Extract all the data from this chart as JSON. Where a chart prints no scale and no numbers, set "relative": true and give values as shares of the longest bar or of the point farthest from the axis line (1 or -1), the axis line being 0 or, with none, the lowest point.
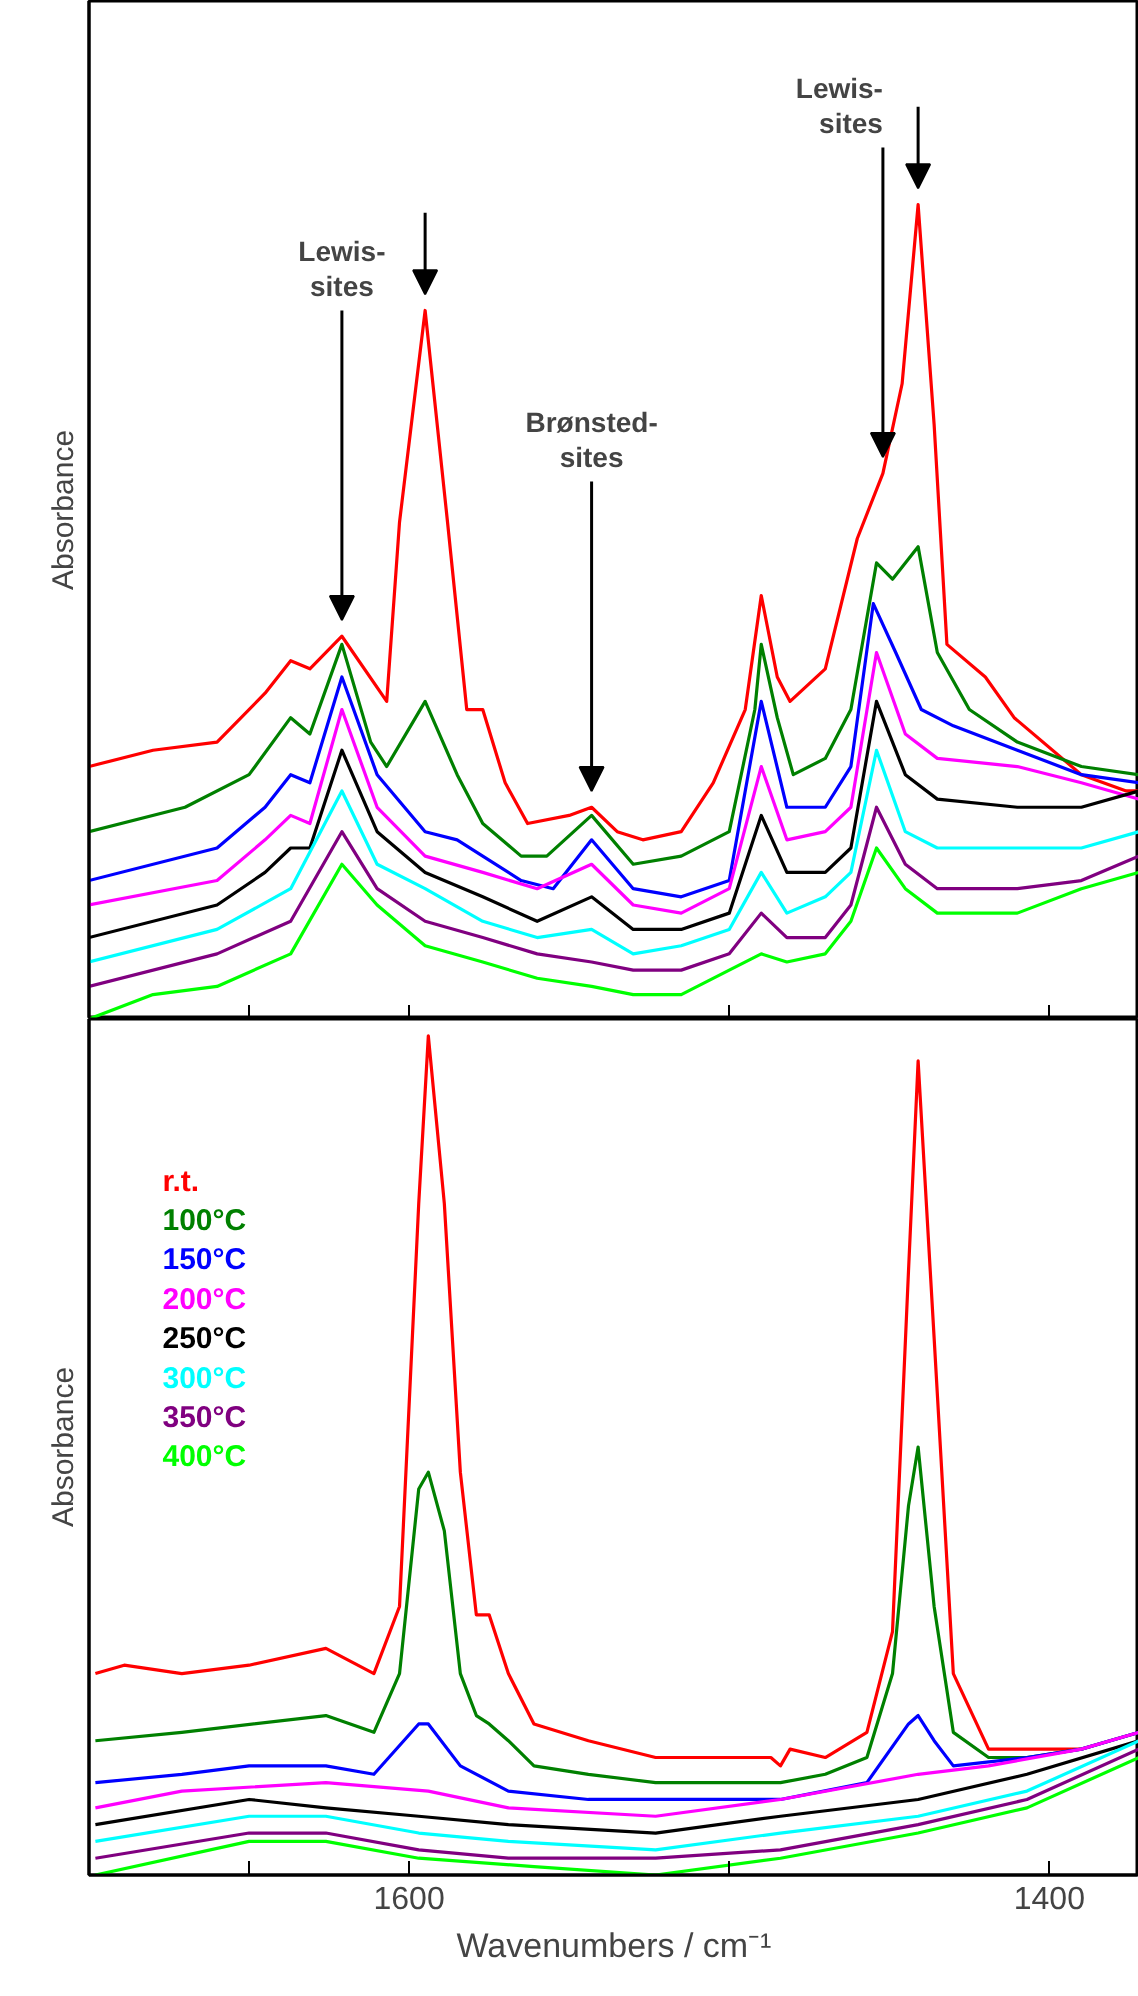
{
  "chart_data": [
    {
      "type": "line",
      "relative": true,
      "ylabel": "Absorbance",
      "xlim": [
        1700,
        1372
      ],
      "xticks": [
        {
          "value": 1650,
          "label": null
        },
        {
          "value": 1600,
          "label": null
        },
        {
          "value": 1500,
          "label": null
        },
        {
          "value": 1400,
          "label": null
        }
      ],
      "tick_labels": false,
      "line_style": "solid",
      "annotations": [
        {
          "text": "Lewis-\nsites",
          "x": 1621,
          "y": 0.47
        },
        {
          "text": "Brønsted-\nsites",
          "x": 1543,
          "y": 0.26
        },
        {
          "text": "Lewis-\nsites",
          "x": 1452,
          "y": 0.67
        }
      ],
      "series": [
        {
          "color": "#ff0000",
          "x": [
            1700,
            1680,
            1660,
            1645,
            1637,
            1631,
            1621,
            1607,
            1603,
            1595,
            1588,
            1582,
            1577,
            1570,
            1563,
            1550,
            1543,
            1535,
            1527,
            1515,
            1505,
            1495,
            1490,
            1485,
            1481,
            1470,
            1460,
            1452,
            1446,
            1441,
            1436,
            1432,
            1420,
            1411,
            1390,
            1376,
            1372
          ],
          "values": [
            0.31,
            0.33,
            0.34,
            0.4,
            0.44,
            0.43,
            0.47,
            0.39,
            0.61,
            0.87,
            0.61,
            0.38,
            0.38,
            0.29,
            0.24,
            0.25,
            0.26,
            0.23,
            0.22,
            0.23,
            0.29,
            0.38,
            0.52,
            0.42,
            0.39,
            0.43,
            0.59,
            0.67,
            0.78,
            1.0,
            0.73,
            0.46,
            0.42,
            0.37,
            0.3,
            0.28,
            0.28
          ]
        },
        {
          "color": "#008000",
          "x": [
            1700,
            1670,
            1650,
            1637,
            1631,
            1621,
            1612,
            1607,
            1595,
            1585,
            1577,
            1565,
            1557,
            1543,
            1530,
            1515,
            1500,
            1492,
            1490,
            1485,
            1480,
            1470,
            1462,
            1454,
            1449,
            1441,
            1435,
            1425,
            1410,
            1390,
            1372
          ],
          "values": [
            0.23,
            0.26,
            0.3,
            0.37,
            0.35,
            0.46,
            0.34,
            0.31,
            0.39,
            0.3,
            0.24,
            0.2,
            0.2,
            0.25,
            0.19,
            0.2,
            0.23,
            0.38,
            0.46,
            0.37,
            0.3,
            0.32,
            0.38,
            0.56,
            0.54,
            0.58,
            0.45,
            0.38,
            0.34,
            0.31,
            0.3
          ]
        },
        {
          "color": "#0000ff",
          "x": [
            1700,
            1660,
            1645,
            1637,
            1631,
            1621,
            1610,
            1595,
            1585,
            1577,
            1565,
            1555,
            1543,
            1530,
            1515,
            1500,
            1490,
            1482,
            1470,
            1462,
            1455,
            1448,
            1440,
            1430,
            1410,
            1390,
            1372
          ],
          "values": [
            0.17,
            0.21,
            0.26,
            0.3,
            0.29,
            0.42,
            0.3,
            0.23,
            0.22,
            0.2,
            0.17,
            0.16,
            0.22,
            0.16,
            0.15,
            0.17,
            0.39,
            0.26,
            0.26,
            0.31,
            0.51,
            0.45,
            0.38,
            0.36,
            0.33,
            0.3,
            0.29
          ]
        },
        {
          "color": "#ff00ff",
          "x": [
            1700,
            1660,
            1645,
            1637,
            1631,
            1621,
            1610,
            1595,
            1577,
            1560,
            1543,
            1530,
            1515,
            1500,
            1490,
            1482,
            1470,
            1462,
            1454,
            1445,
            1435,
            1410,
            1390,
            1372
          ],
          "values": [
            0.14,
            0.17,
            0.22,
            0.25,
            0.24,
            0.38,
            0.26,
            0.2,
            0.18,
            0.16,
            0.19,
            0.14,
            0.13,
            0.16,
            0.31,
            0.22,
            0.23,
            0.26,
            0.45,
            0.35,
            0.32,
            0.31,
            0.29,
            0.27
          ]
        },
        {
          "color": "#000000",
          "x": [
            1700,
            1660,
            1645,
            1637,
            1631,
            1621,
            1610,
            1595,
            1577,
            1560,
            1543,
            1530,
            1515,
            1500,
            1490,
            1482,
            1470,
            1462,
            1454,
            1445,
            1435,
            1410,
            1390,
            1372
          ],
          "values": [
            0.1,
            0.14,
            0.18,
            0.21,
            0.21,
            0.33,
            0.23,
            0.18,
            0.15,
            0.12,
            0.15,
            0.11,
            0.11,
            0.13,
            0.25,
            0.18,
            0.18,
            0.21,
            0.39,
            0.3,
            0.27,
            0.26,
            0.26,
            0.28
          ]
        },
        {
          "color": "#00ffff",
          "x": [
            1700,
            1660,
            1637,
            1621,
            1610,
            1595,
            1577,
            1560,
            1543,
            1530,
            1515,
            1500,
            1490,
            1482,
            1470,
            1462,
            1454,
            1445,
            1435,
            1410,
            1390,
            1372
          ],
          "values": [
            0.07,
            0.11,
            0.16,
            0.28,
            0.19,
            0.16,
            0.12,
            0.1,
            0.11,
            0.08,
            0.09,
            0.11,
            0.18,
            0.13,
            0.15,
            0.18,
            0.33,
            0.23,
            0.21,
            0.21,
            0.21,
            0.23
          ]
        },
        {
          "color": "#800080",
          "x": [
            1700,
            1660,
            1637,
            1621,
            1610,
            1595,
            1577,
            1560,
            1543,
            1530,
            1515,
            1500,
            1490,
            1482,
            1470,
            1462,
            1454,
            1445,
            1435,
            1410,
            1390,
            1372
          ],
          "values": [
            0.04,
            0.08,
            0.12,
            0.23,
            0.16,
            0.12,
            0.1,
            0.08,
            0.07,
            0.06,
            0.06,
            0.08,
            0.13,
            0.1,
            0.1,
            0.14,
            0.26,
            0.19,
            0.16,
            0.16,
            0.17,
            0.2
          ]
        },
        {
          "color": "#00ff00",
          "x": [
            1700,
            1680,
            1660,
            1637,
            1621,
            1610,
            1595,
            1577,
            1560,
            1543,
            1530,
            1515,
            1500,
            1490,
            1482,
            1470,
            1462,
            1454,
            1445,
            1435,
            1410,
            1390,
            1372
          ],
          "values": [
            0.0,
            0.03,
            0.04,
            0.08,
            0.19,
            0.14,
            0.09,
            0.07,
            0.05,
            0.04,
            0.03,
            0.03,
            0.06,
            0.08,
            0.07,
            0.08,
            0.12,
            0.21,
            0.16,
            0.13,
            0.13,
            0.16,
            0.18
          ]
        }
      ]
    },
    {
      "type": "line",
      "relative": true,
      "ylabel": "Absorbance",
      "xlabel": "Wavenumbers / cm⁻¹",
      "xlim": [
        1700,
        1372
      ],
      "xticks": [
        {
          "value": 1650,
          "label": null
        },
        1600,
        {
          "value": 1500,
          "label": null
        },
        1400
      ],
      "tick_labels": "x",
      "line_style": "solid",
      "legend": "top left",
      "series": [
        {
          "name": "r.t.",
          "color": "#ff0000",
          "x": [
            1698,
            1689,
            1671,
            1650,
            1626,
            1611,
            1603,
            1597,
            1594,
            1589,
            1584,
            1579,
            1575,
            1569,
            1561,
            1544,
            1523,
            1502,
            1487,
            1484,
            1481,
            1470,
            1457,
            1449,
            1444,
            1441,
            1436,
            1430,
            1419,
            1407,
            1390
          ],
          "values": [
            0.24,
            0.25,
            0.24,
            0.25,
            0.27,
            0.24,
            0.32,
            0.8,
            1.0,
            0.8,
            0.48,
            0.31,
            0.31,
            0.24,
            0.18,
            0.16,
            0.14,
            0.14,
            0.14,
            0.13,
            0.15,
            0.14,
            0.17,
            0.29,
            0.72,
            0.97,
            0.64,
            0.24,
            0.15,
            0.15,
            0.15
          ]
        },
        {
          "name": "100°C",
          "color": "#008000",
          "x": [
            1698,
            1671,
            1626,
            1611,
            1603,
            1597,
            1594,
            1589,
            1584,
            1579,
            1575,
            1569,
            1561,
            1544,
            1523,
            1502,
            1484,
            1470,
            1457,
            1449,
            1444,
            1441,
            1436,
            1430,
            1419,
            1407,
            1390,
            1372
          ],
          "values": [
            0.16,
            0.17,
            0.19,
            0.17,
            0.24,
            0.46,
            0.48,
            0.41,
            0.24,
            0.19,
            0.18,
            0.16,
            0.13,
            0.12,
            0.11,
            0.11,
            0.11,
            0.12,
            0.14,
            0.24,
            0.44,
            0.51,
            0.32,
            0.17,
            0.14,
            0.14,
            0.15,
            0.17
          ]
        },
        {
          "name": "150°C",
          "color": "#0000ff",
          "x": [
            1698,
            1671,
            1650,
            1626,
            1611,
            1597,
            1594,
            1584,
            1569,
            1544,
            1502,
            1484,
            1457,
            1444,
            1441,
            1436,
            1430,
            1407,
            1390,
            1372
          ],
          "values": [
            0.11,
            0.12,
            0.13,
            0.13,
            0.12,
            0.18,
            0.18,
            0.13,
            0.1,
            0.09,
            0.09,
            0.09,
            0.11,
            0.18,
            0.19,
            0.16,
            0.13,
            0.14,
            0.15,
            0.17
          ]
        },
        {
          "name": "200°C",
          "color": "#ff00ff",
          "x": [
            1698,
            1671,
            1626,
            1594,
            1569,
            1523,
            1484,
            1441,
            1419,
            1390,
            1372
          ],
          "values": [
            0.08,
            0.1,
            0.11,
            0.1,
            0.08,
            0.07,
            0.09,
            0.12,
            0.13,
            0.15,
            0.17
          ]
        },
        {
          "name": "250°C",
          "color": "#000000",
          "x": [
            1698,
            1650,
            1626,
            1597,
            1569,
            1523,
            1484,
            1441,
            1407,
            1372
          ],
          "values": [
            0.06,
            0.09,
            0.08,
            0.07,
            0.06,
            0.05,
            0.07,
            0.09,
            0.12,
            0.16
          ]
        },
        {
          "name": "300°C",
          "color": "#00ffff",
          "x": [
            1698,
            1650,
            1626,
            1597,
            1569,
            1523,
            1484,
            1441,
            1407,
            1372
          ],
          "values": [
            0.04,
            0.07,
            0.07,
            0.05,
            0.04,
            0.03,
            0.05,
            0.07,
            0.1,
            0.16
          ]
        },
        {
          "name": "350°C",
          "color": "#800080",
          "x": [
            1698,
            1650,
            1626,
            1597,
            1569,
            1523,
            1484,
            1441,
            1407,
            1372
          ],
          "values": [
            0.02,
            0.05,
            0.05,
            0.03,
            0.02,
            0.02,
            0.03,
            0.06,
            0.09,
            0.15
          ]
        },
        {
          "name": "400°C",
          "color": "#00ff00",
          "x": [
            1698,
            1650,
            1626,
            1597,
            1561,
            1523,
            1484,
            1441,
            1407,
            1372
          ],
          "values": [
            0.0,
            0.04,
            0.04,
            0.02,
            0.01,
            0.0,
            0.02,
            0.05,
            0.08,
            0.14
          ]
        }
      ]
    }
  ]
}
